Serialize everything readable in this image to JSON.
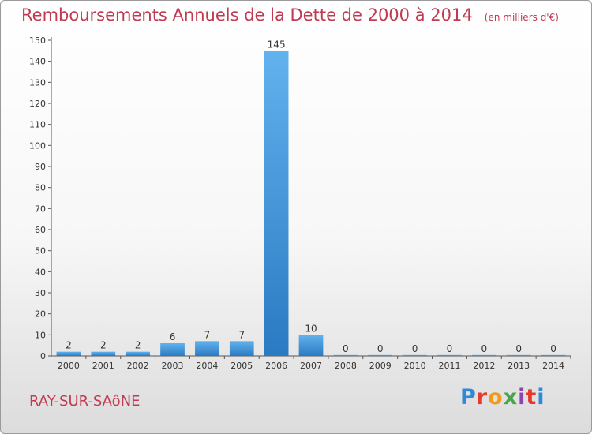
{
  "chart_data": {
    "type": "bar",
    "title": "Remboursements Annuels de la Dette de 2000 à 2014",
    "unit": "(en milliers d'€)",
    "categories": [
      "2000",
      "2001",
      "2002",
      "2003",
      "2004",
      "2005",
      "2006",
      "2007",
      "2008",
      "2009",
      "2010",
      "2011",
      "2012",
      "2013",
      "2014"
    ],
    "values": [
      2,
      2,
      2,
      6,
      7,
      7,
      145,
      10,
      0,
      0,
      0,
      0,
      0,
      0,
      0
    ],
    "ylim": [
      0,
      150
    ],
    "yticks": [
      0,
      10,
      20,
      30,
      40,
      50,
      60,
      70,
      80,
      90,
      100,
      110,
      120,
      130,
      140,
      150
    ],
    "xlabel": "",
    "ylabel": "",
    "grid": false,
    "bar_color": "#3d8fd6",
    "title_color": "#c03a52"
  },
  "footer": {
    "commune": "RAY-SUR-SAôNE",
    "logo_letters": [
      "P",
      "r",
      "o",
      "x",
      "i",
      "t",
      "i"
    ],
    "logo_colors": [
      "#2e8ad8",
      "#e8372c",
      "#f39a1b",
      "#4aa54a",
      "#8e44ad",
      "#e8372c",
      "#2e8ad8"
    ]
  }
}
